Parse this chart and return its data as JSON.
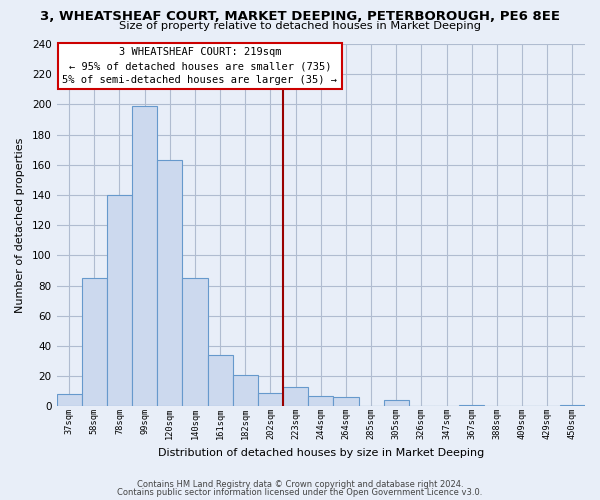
{
  "title": "3, WHEATSHEAF COURT, MARKET DEEPING, PETERBOROUGH, PE6 8EE",
  "subtitle": "Size of property relative to detached houses in Market Deeping",
  "xlabel": "Distribution of detached houses by size in Market Deeping",
  "ylabel": "Number of detached properties",
  "bin_labels": [
    "37sqm",
    "58sqm",
    "78sqm",
    "99sqm",
    "120sqm",
    "140sqm",
    "161sqm",
    "182sqm",
    "202sqm",
    "223sqm",
    "244sqm",
    "264sqm",
    "285sqm",
    "305sqm",
    "326sqm",
    "347sqm",
    "367sqm",
    "388sqm",
    "409sqm",
    "429sqm",
    "450sqm"
  ],
  "bar_heights": [
    8,
    85,
    140,
    199,
    163,
    85,
    34,
    21,
    9,
    13,
    7,
    6,
    0,
    4,
    0,
    0,
    1,
    0,
    0,
    0,
    1
  ],
  "bar_color": "#ccd9ee",
  "bar_edge_color": "#6699cc",
  "marker_line_color": "#990000",
  "annotation_line1": "3 WHEATSHEAF COURT: 219sqm",
  "annotation_line2": "← 95% of detached houses are smaller (735)",
  "annotation_line3": "5% of semi-detached houses are larger (35) →",
  "ylim": [
    0,
    240
  ],
  "yticks": [
    0,
    20,
    40,
    60,
    80,
    100,
    120,
    140,
    160,
    180,
    200,
    220,
    240
  ],
  "footer1": "Contains HM Land Registry data © Crown copyright and database right 2024.",
  "footer2": "Contains public sector information licensed under the Open Government Licence v3.0.",
  "bg_color": "#e8eef8",
  "grid_color": "#b0bcd0"
}
